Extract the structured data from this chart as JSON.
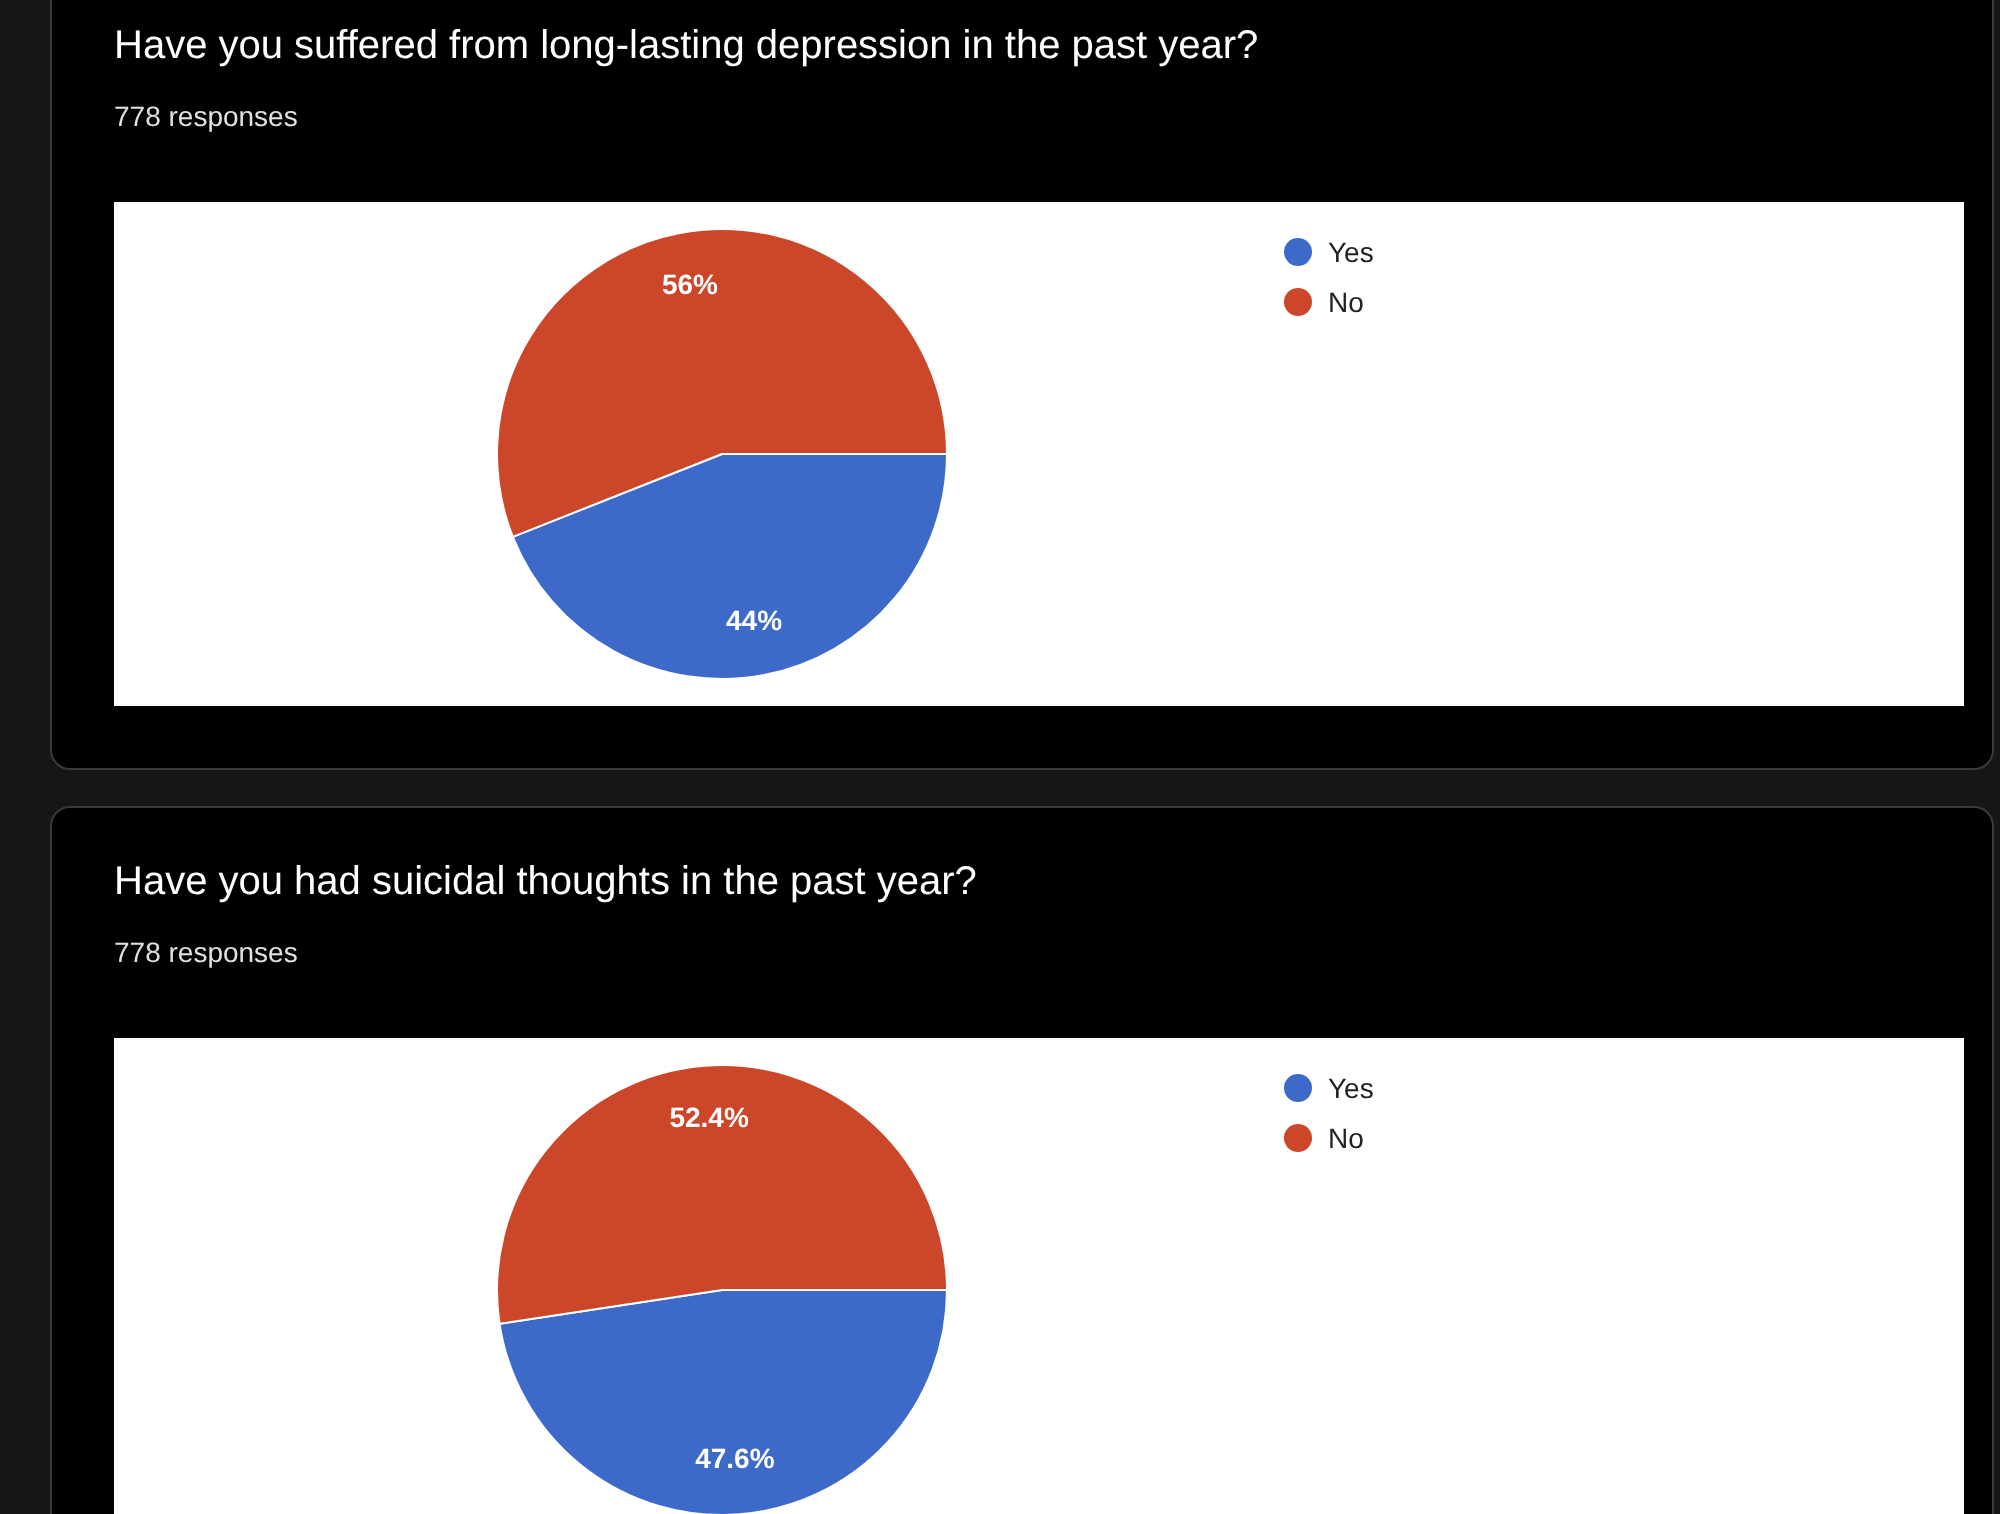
{
  "chart_data": [
    {
      "type": "pie",
      "title": "Have you suffered from long-lasting depression in the past year?",
      "subtitle": "778 responses",
      "categories": [
        "Yes",
        "No"
      ],
      "values": [
        44,
        56
      ],
      "colors": [
        "#3d6ac8",
        "#cc4629"
      ],
      "value_labels": [
        "44%",
        "56%"
      ],
      "legend": "right"
    },
    {
      "type": "pie",
      "title": "Have you had suicidal thoughts in the past year?",
      "subtitle": "778 responses",
      "categories": [
        "Yes",
        "No"
      ],
      "values": [
        47.6,
        52.4
      ],
      "colors": [
        "#3d6ac8",
        "#cc4629"
      ],
      "value_labels": [
        "47.6%",
        "52.4%"
      ],
      "legend": "right"
    }
  ]
}
